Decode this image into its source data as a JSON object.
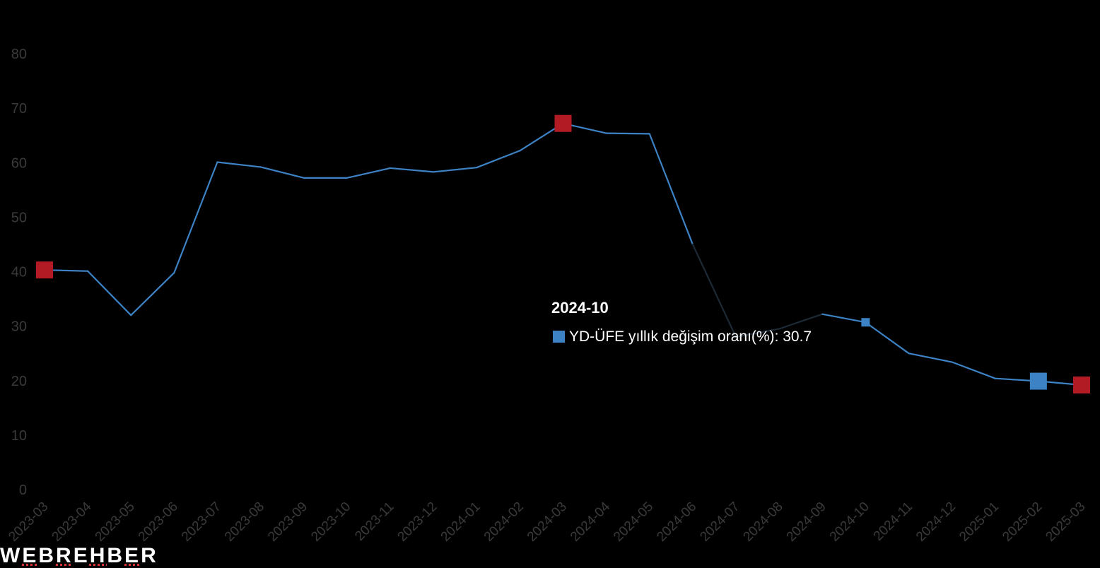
{
  "chart_data": {
    "type": "line",
    "categories": [
      "2023-03",
      "2023-04",
      "2023-05",
      "2023-06",
      "2023-07",
      "2023-08",
      "2023-09",
      "2023-10",
      "2023-11",
      "2023-12",
      "2024-01",
      "2024-02",
      "2024-03",
      "2024-04",
      "2024-05",
      "2024-06",
      "2024-07",
      "2024-08",
      "2024-09",
      "2024-10",
      "2024-11",
      "2024-12",
      "2025-01",
      "2025-02",
      "2025-03"
    ],
    "series": [
      {
        "name": "YD-ÜFE yıllık değişim oranı(%)",
        "values": [
          40.3,
          40.1,
          32.0,
          39.8,
          60.1,
          59.2,
          57.2,
          57.2,
          59.0,
          58.3,
          59.1,
          62.2,
          67.2,
          65.4,
          65.3,
          45.0,
          28.0,
          29.5,
          32.2,
          30.7,
          25.0,
          23.4,
          20.4,
          19.9,
          19.2
        ],
        "color": "#3c82c4"
      }
    ],
    "ylim": [
      0,
      80
    ],
    "yticks": [
      0,
      10,
      20,
      30,
      40,
      50,
      60,
      70,
      80
    ],
    "grid": false,
    "highlights": {
      "max_min_markers": [
        0,
        12,
        24
      ],
      "max_min_color": "#b31b24",
      "average_marker": 23,
      "average_color": "#3c82c4",
      "hovered_index": 19
    },
    "tooltip": {
      "title": "2024-10",
      "series_label": "YD-ÜFE yıllık değişim oranı(%)",
      "value": "30.7"
    }
  },
  "watermark": "WEBREHBER"
}
